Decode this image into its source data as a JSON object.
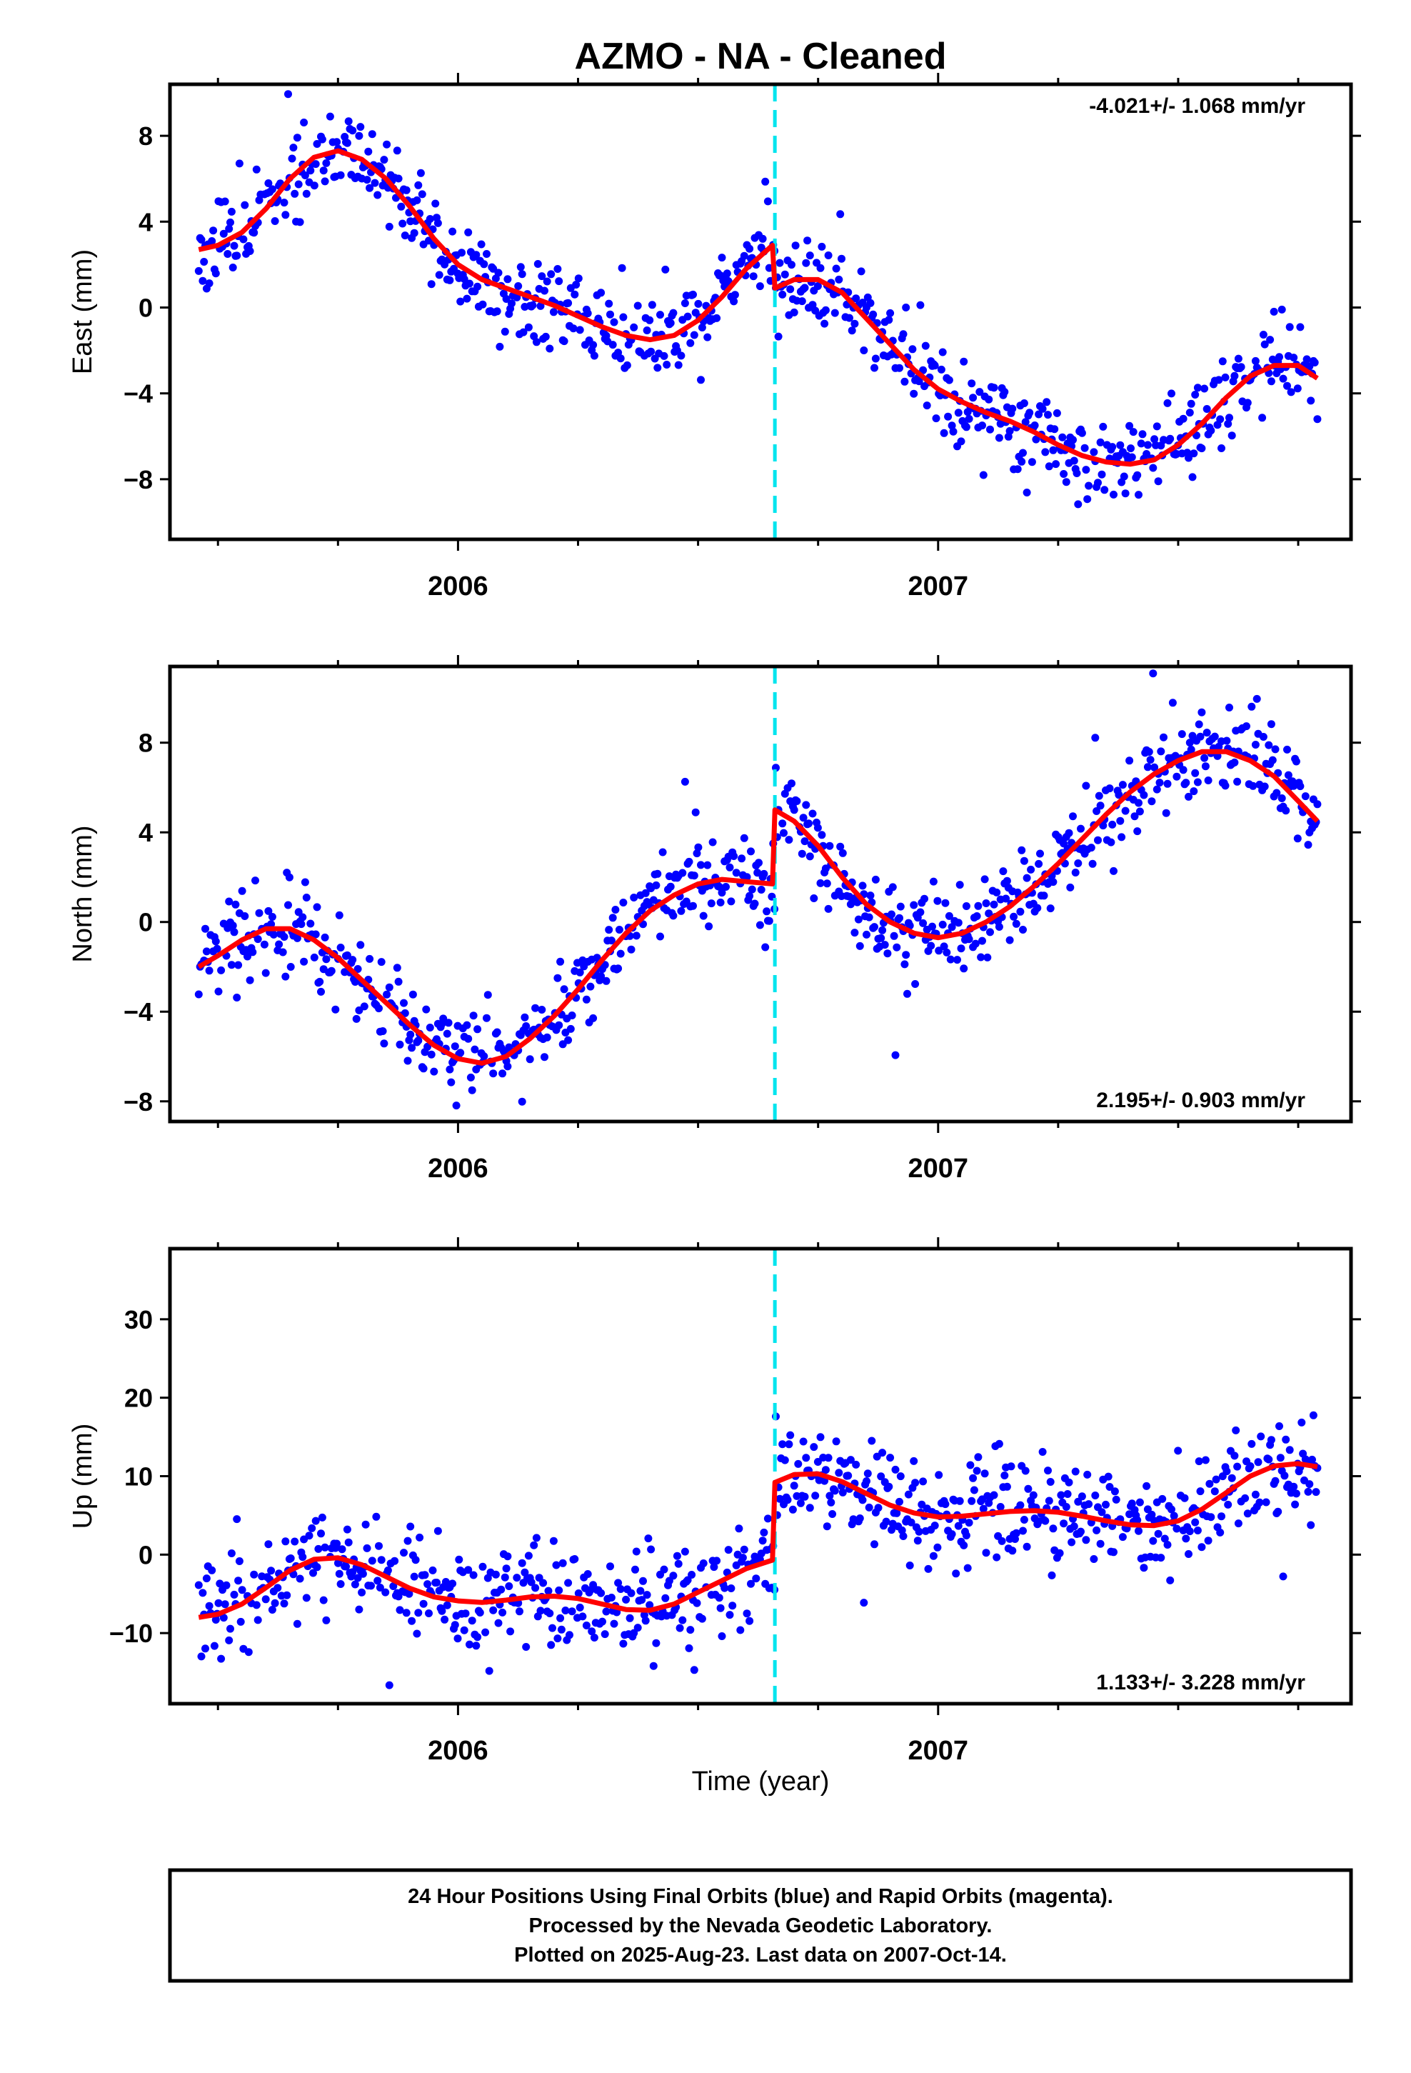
{
  "title": "AZMO  - NA - Cleaned",
  "x_axis_label": "Time (year)",
  "footer_lines": [
    "24 Hour Positions Using Final Orbits (blue) and Rapid Orbits (magenta).",
    "Processed by the Nevada Geodetic Laboratory.",
    "Plotted on 2025-Aug-23. Last data on 2007-Oct-14."
  ],
  "colors": {
    "data_points": "#0000ff",
    "model_fit": "#ff0000",
    "offset_line": "#00e5ee",
    "frame": "#000000"
  },
  "chart_data": [
    {
      "type": "scatter",
      "component": "East",
      "ylabel": "East (mm)",
      "rate_text": "-4.021+/- 1.068 mm/yr",
      "rate_position": "top-right",
      "xlim": [
        2005.4,
        2007.86
      ],
      "ylim": [
        -10.8,
        10.4
      ],
      "yticks": [
        8,
        4,
        0,
        -4,
        -8
      ],
      "ytick_labels": [
        "8",
        "4",
        "0",
        "−4",
        "−8"
      ],
      "xticks": [
        2006,
        2007
      ],
      "xtick_labels": [
        "2006",
        "2007"
      ],
      "xminor": [
        2005.5,
        2005.75,
        2006.25,
        2006.5,
        2006.75,
        2007.25,
        2007.5,
        2007.75
      ],
      "offset_epoch": 2006.66,
      "model_fit": [
        [
          2005.46,
          2.7
        ],
        [
          2005.5,
          2.9
        ],
        [
          2005.55,
          3.5
        ],
        [
          2005.6,
          4.6
        ],
        [
          2005.65,
          6.0
        ],
        [
          2005.7,
          7.0
        ],
        [
          2005.75,
          7.3
        ],
        [
          2005.8,
          6.9
        ],
        [
          2005.85,
          6.0
        ],
        [
          2005.9,
          4.7
        ],
        [
          2005.95,
          3.2
        ],
        [
          2006.0,
          2.0
        ],
        [
          2006.05,
          1.3
        ],
        [
          2006.1,
          0.9
        ],
        [
          2006.15,
          0.5
        ],
        [
          2006.2,
          0.1
        ],
        [
          2006.25,
          -0.4
        ],
        [
          2006.3,
          -0.9
        ],
        [
          2006.35,
          -1.3
        ],
        [
          2006.4,
          -1.5
        ],
        [
          2006.45,
          -1.3
        ],
        [
          2006.5,
          -0.6
        ],
        [
          2006.55,
          0.5
        ],
        [
          2006.6,
          1.8
        ],
        [
          2006.655,
          2.9
        ],
        [
          2006.66,
          0.9
        ],
        [
          2006.7,
          1.3
        ],
        [
          2006.75,
          1.3
        ],
        [
          2006.8,
          0.7
        ],
        [
          2006.85,
          -0.5
        ],
        [
          2006.9,
          -1.7
        ],
        [
          2006.95,
          -2.9
        ],
        [
          2007.0,
          -3.8
        ],
        [
          2007.05,
          -4.4
        ],
        [
          2007.1,
          -4.9
        ],
        [
          2007.15,
          -5.3
        ],
        [
          2007.2,
          -5.8
        ],
        [
          2007.25,
          -6.4
        ],
        [
          2007.3,
          -6.9
        ],
        [
          2007.35,
          -7.2
        ],
        [
          2007.4,
          -7.3
        ],
        [
          2007.45,
          -7.1
        ],
        [
          2007.5,
          -6.4
        ],
        [
          2007.55,
          -5.4
        ],
        [
          2007.6,
          -4.2
        ],
        [
          2007.65,
          -3.2
        ],
        [
          2007.7,
          -2.7
        ],
        [
          2007.75,
          -2.7
        ],
        [
          2007.79,
          -3.3
        ]
      ],
      "scatter_seed": 11,
      "scatter_sigma": 1.05,
      "outlier_rate": 0.03,
      "outlier_scale": 2.4
    },
    {
      "type": "scatter",
      "component": "North",
      "ylabel": "North (mm)",
      "rate_text": "2.195+/- 0.903 mm/yr",
      "rate_position": "bottom-right",
      "xlim": [
        2005.4,
        2007.86
      ],
      "ylim": [
        -8.9,
        11.4
      ],
      "yticks": [
        8,
        4,
        0,
        -4,
        -8
      ],
      "ytick_labels": [
        "8",
        "4",
        "0",
        "−4",
        "−8"
      ],
      "xticks": [
        2006,
        2007
      ],
      "xtick_labels": [
        "2006",
        "2007"
      ],
      "xminor": [
        2005.5,
        2005.75,
        2006.25,
        2006.5,
        2006.75,
        2007.25,
        2007.5,
        2007.75
      ],
      "offset_epoch": 2006.66,
      "model_fit": [
        [
          2005.46,
          -2.0
        ],
        [
          2005.5,
          -1.5
        ],
        [
          2005.55,
          -0.8
        ],
        [
          2005.6,
          -0.3
        ],
        [
          2005.65,
          -0.3
        ],
        [
          2005.7,
          -0.8
        ],
        [
          2005.75,
          -1.6
        ],
        [
          2005.8,
          -2.6
        ],
        [
          2005.85,
          -3.6
        ],
        [
          2005.9,
          -4.6
        ],
        [
          2005.95,
          -5.5
        ],
        [
          2006.0,
          -6.1
        ],
        [
          2006.05,
          -6.3
        ],
        [
          2006.1,
          -6.0
        ],
        [
          2006.15,
          -5.2
        ],
        [
          2006.2,
          -4.2
        ],
        [
          2006.25,
          -3.0
        ],
        [
          2006.3,
          -1.7
        ],
        [
          2006.35,
          -0.5
        ],
        [
          2006.4,
          0.5
        ],
        [
          2006.45,
          1.2
        ],
        [
          2006.5,
          1.7
        ],
        [
          2006.55,
          1.9
        ],
        [
          2006.6,
          1.8
        ],
        [
          2006.655,
          1.7
        ],
        [
          2006.66,
          5.0
        ],
        [
          2006.7,
          4.5
        ],
        [
          2006.75,
          3.4
        ],
        [
          2006.8,
          2.0
        ],
        [
          2006.85,
          0.8
        ],
        [
          2006.9,
          0.0
        ],
        [
          2006.95,
          -0.5
        ],
        [
          2007.0,
          -0.7
        ],
        [
          2007.05,
          -0.5
        ],
        [
          2007.1,
          0.0
        ],
        [
          2007.15,
          0.7
        ],
        [
          2007.2,
          1.6
        ],
        [
          2007.25,
          2.6
        ],
        [
          2007.3,
          3.7
        ],
        [
          2007.35,
          4.8
        ],
        [
          2007.4,
          5.8
        ],
        [
          2007.45,
          6.6
        ],
        [
          2007.5,
          7.2
        ],
        [
          2007.55,
          7.6
        ],
        [
          2007.6,
          7.6
        ],
        [
          2007.65,
          7.2
        ],
        [
          2007.7,
          6.5
        ],
        [
          2007.75,
          5.4
        ],
        [
          2007.79,
          4.5
        ]
      ],
      "scatter_seed": 23,
      "scatter_sigma": 0.95,
      "outlier_rate": 0.03,
      "outlier_scale": 2.6
    },
    {
      "type": "scatter",
      "component": "Up",
      "ylabel": "Up (mm)",
      "rate_text": "1.133+/- 3.228 mm/yr",
      "rate_position": "bottom-right",
      "xlim": [
        2005.4,
        2007.86
      ],
      "ylim": [
        -19,
        39
      ],
      "yticks": [
        30,
        20,
        10,
        0,
        -10
      ],
      "ytick_labels": [
        "30",
        "20",
        "10",
        "0",
        "−10"
      ],
      "xticks": [
        2006,
        2007
      ],
      "xtick_labels": [
        "2006",
        "2007"
      ],
      "xminor": [
        2005.5,
        2005.75,
        2006.25,
        2006.5,
        2006.75,
        2007.25,
        2007.5,
        2007.75
      ],
      "offset_epoch": 2006.66,
      "model_fit": [
        [
          2005.46,
          -8.0
        ],
        [
          2005.5,
          -7.6
        ],
        [
          2005.55,
          -6.3
        ],
        [
          2005.6,
          -4.2
        ],
        [
          2005.65,
          -2.0
        ],
        [
          2005.7,
          -0.6
        ],
        [
          2005.75,
          -0.4
        ],
        [
          2005.8,
          -1.3
        ],
        [
          2005.85,
          -2.8
        ],
        [
          2005.9,
          -4.3
        ],
        [
          2005.95,
          -5.4
        ],
        [
          2006.0,
          -5.9
        ],
        [
          2006.05,
          -6.1
        ],
        [
          2006.1,
          -5.8
        ],
        [
          2006.15,
          -5.4
        ],
        [
          2006.2,
          -5.3
        ],
        [
          2006.25,
          -5.6
        ],
        [
          2006.3,
          -6.3
        ],
        [
          2006.35,
          -7.0
        ],
        [
          2006.4,
          -7.1
        ],
        [
          2006.45,
          -6.3
        ],
        [
          2006.5,
          -4.8
        ],
        [
          2006.55,
          -3.3
        ],
        [
          2006.6,
          -1.8
        ],
        [
          2006.655,
          -0.7
        ],
        [
          2006.66,
          9.2
        ],
        [
          2006.7,
          10.2
        ],
        [
          2006.75,
          10.3
        ],
        [
          2006.8,
          9.3
        ],
        [
          2006.85,
          7.8
        ],
        [
          2006.9,
          6.3
        ],
        [
          2006.95,
          5.3
        ],
        [
          2007.0,
          4.8
        ],
        [
          2007.05,
          4.9
        ],
        [
          2007.1,
          5.2
        ],
        [
          2007.15,
          5.5
        ],
        [
          2007.2,
          5.6
        ],
        [
          2007.25,
          5.4
        ],
        [
          2007.3,
          4.9
        ],
        [
          2007.35,
          4.3
        ],
        [
          2007.4,
          3.8
        ],
        [
          2007.45,
          3.7
        ],
        [
          2007.5,
          4.3
        ],
        [
          2007.55,
          5.8
        ],
        [
          2007.6,
          7.9
        ],
        [
          2007.65,
          10.0
        ],
        [
          2007.7,
          11.3
        ],
        [
          2007.75,
          11.6
        ],
        [
          2007.79,
          11.2
        ]
      ],
      "scatter_seed": 37,
      "scatter_sigma": 3.3,
      "outlier_rate": 0.04,
      "outlier_scale": 2.3
    }
  ]
}
